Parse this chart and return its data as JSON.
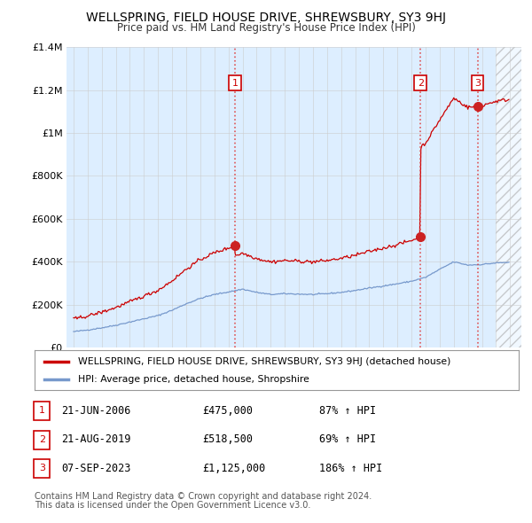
{
  "title": "WELLSPRING, FIELD HOUSE DRIVE, SHREWSBURY, SY3 9HJ",
  "subtitle": "Price paid vs. HM Land Registry's House Price Index (HPI)",
  "ylim": [
    0,
    1400000
  ],
  "xlim_start": 1994.5,
  "xlim_end": 2026.8,
  "yticks": [
    0,
    200000,
    400000,
    600000,
    800000,
    1000000,
    1200000,
    1400000
  ],
  "ytick_labels": [
    "£0",
    "£200K",
    "£400K",
    "£600K",
    "£800K",
    "£1M",
    "£1.2M",
    "£1.4M"
  ],
  "sale_dates": [
    2006.47,
    2019.64,
    2023.69
  ],
  "sale_prices": [
    475000,
    518500,
    1125000
  ],
  "sale_labels": [
    "1",
    "2",
    "3"
  ],
  "sale_date_strs": [
    "21-JUN-2006",
    "21-AUG-2019",
    "07-SEP-2023"
  ],
  "sale_price_strs": [
    "£475,000",
    "£518,500",
    "£1,125,000"
  ],
  "sale_hpi_strs": [
    "87% ↑ HPI",
    "69% ↑ HPI",
    "186% ↑ HPI"
  ],
  "red_line_color": "#cc0000",
  "blue_line_color": "#7799cc",
  "grid_color": "#cccccc",
  "bg_fill_color": "#ddeeff",
  "background_color": "#ffffff",
  "legend1": "WELLSPRING, FIELD HOUSE DRIVE, SHREWSBURY, SY3 9HJ (detached house)",
  "legend2": "HPI: Average price, detached house, Shropshire",
  "footer1": "Contains HM Land Registry data © Crown copyright and database right 2024.",
  "footer2": "This data is licensed under the Open Government Licence v3.0."
}
